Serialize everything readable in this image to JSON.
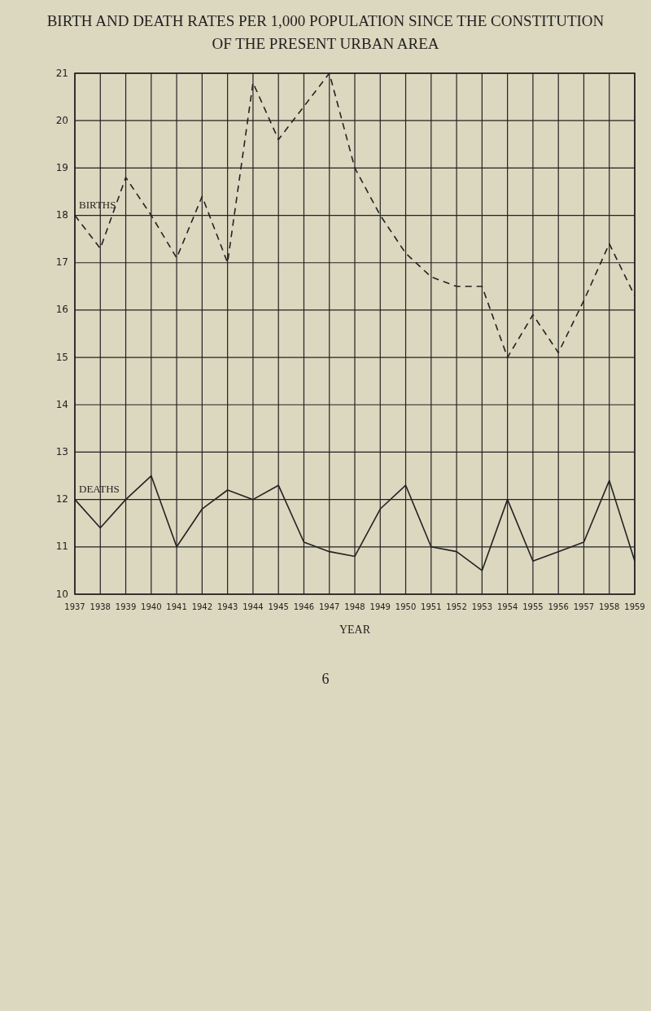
{
  "chart_data": {
    "type": "line",
    "title": "BIRTH AND DEATH RATES PER 1,000 POPULATION SINCE THE CONSTITUTION OF THE PRESENT URBAN AREA",
    "xlabel": "YEAR",
    "x": [
      1937,
      1938,
      1939,
      1940,
      1941,
      1942,
      1943,
      1944,
      1945,
      1946,
      1947,
      1948,
      1949,
      1950,
      1951,
      1952,
      1953,
      1954,
      1955,
      1956,
      1957,
      1958,
      1959
    ],
    "series": [
      {
        "name": "BIRTHS",
        "color": "#222222",
        "line_style": "dashed",
        "values": [
          18.0,
          17.3,
          18.8,
          18.0,
          17.1,
          18.4,
          17.0,
          20.8,
          19.6,
          20.3,
          21.0,
          19.0,
          18.0,
          17.2,
          16.7,
          16.5,
          16.5,
          15.0,
          15.9,
          15.1,
          16.2,
          17.4,
          16.3
        ]
      },
      {
        "name": "DEATHS",
        "color": "#222222",
        "line_style": "solid",
        "values": [
          12.0,
          11.4,
          12.0,
          12.5,
          11.0,
          11.8,
          12.2,
          12.0,
          12.3,
          11.1,
          10.9,
          10.8,
          11.8,
          12.3,
          11.0,
          10.9,
          10.5,
          12.0,
          10.7,
          10.9,
          11.1,
          12.4,
          10.7
        ]
      }
    ],
    "xlim": [
      1937,
      1959
    ],
    "xticks": [
      1937,
      1938,
      1939,
      1940,
      1941,
      1942,
      1943,
      1944,
      1945,
      1946,
      1947,
      1948,
      1949,
      1950,
      1951,
      1952,
      1953,
      1954,
      1955,
      1956,
      1957,
      1958,
      1959
    ],
    "ylim": [
      10,
      21
    ],
    "yticks": [
      10,
      11,
      12,
      13,
      14,
      15,
      16,
      17,
      18,
      19,
      20,
      21
    ],
    "grid": true,
    "marker": "none",
    "annotations": [
      "6"
    ]
  }
}
